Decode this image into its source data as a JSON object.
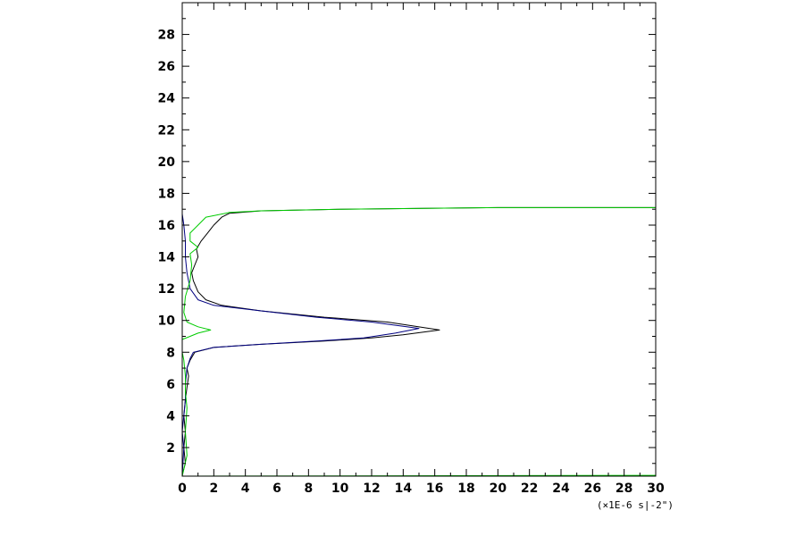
{
  "chart_data": {
    "type": "line",
    "title": "",
    "xlabel": "",
    "ylabel": "",
    "x_unit_label": "(×1E-6 s|-2\")",
    "xlim": [
      0,
      30
    ],
    "ylim": [
      0.2,
      30
    ],
    "x_ticks": [
      0,
      2,
      4,
      6,
      8,
      10,
      12,
      14,
      16,
      18,
      20,
      22,
      24,
      26,
      28,
      30
    ],
    "y_ticks": [
      2,
      4,
      6,
      8,
      10,
      12,
      14,
      16,
      18,
      20,
      22,
      24,
      26,
      28
    ],
    "grid": false,
    "legend": "none",
    "series": [
      {
        "color": "#000000",
        "points": [
          [
            0.0,
            0.3
          ],
          [
            0.2,
            1.0
          ],
          [
            0.1,
            2.0
          ],
          [
            0.2,
            3.0
          ],
          [
            0.1,
            4.0
          ],
          [
            0.2,
            5.0
          ],
          [
            0.3,
            5.8
          ],
          [
            0.4,
            6.5
          ],
          [
            0.3,
            7.0
          ],
          [
            0.5,
            7.5
          ],
          [
            0.8,
            8.0
          ],
          [
            2.0,
            8.3
          ],
          [
            5.0,
            8.5
          ],
          [
            9.0,
            8.7
          ],
          [
            12.0,
            8.9
          ],
          [
            14.0,
            9.1
          ],
          [
            16.3,
            9.4
          ],
          [
            13.0,
            9.9
          ],
          [
            9.0,
            10.2
          ],
          [
            5.0,
            10.6
          ],
          [
            2.5,
            10.95
          ],
          [
            1.5,
            11.3
          ],
          [
            1.0,
            11.8
          ],
          [
            0.7,
            12.5
          ],
          [
            0.6,
            13.0
          ],
          [
            0.8,
            13.5
          ],
          [
            1.0,
            14.0
          ],
          [
            0.9,
            14.5
          ],
          [
            1.2,
            15.0
          ],
          [
            1.6,
            15.5
          ],
          [
            2.0,
            16.0
          ],
          [
            2.5,
            16.5
          ],
          [
            3.0,
            16.75
          ],
          [
            5.0,
            16.9
          ],
          [
            10.0,
            17.0
          ],
          [
            20.0,
            17.1
          ],
          [
            30.0,
            17.1
          ]
        ]
      },
      {
        "color": "#000080",
        "points": [
          [
            0.0,
            0.2
          ],
          [
            0.1,
            2.0
          ],
          [
            0.0,
            3.0
          ],
          [
            0.1,
            4.0
          ],
          [
            0.2,
            5.0
          ],
          [
            0.2,
            6.0
          ],
          [
            0.3,
            7.0
          ],
          [
            0.5,
            7.6
          ],
          [
            0.7,
            8.0
          ],
          [
            2.0,
            8.3
          ],
          [
            5.0,
            8.5
          ],
          [
            8.5,
            8.7
          ],
          [
            11.5,
            8.9
          ],
          [
            13.5,
            9.2
          ],
          [
            15.0,
            9.5
          ],
          [
            12.0,
            9.9
          ],
          [
            8.5,
            10.2
          ],
          [
            5.0,
            10.6
          ],
          [
            2.0,
            10.95
          ],
          [
            1.0,
            11.3
          ],
          [
            0.5,
            12.0
          ],
          [
            0.3,
            13.0
          ],
          [
            0.2,
            14.0
          ],
          [
            0.2,
            15.0
          ],
          [
            0.1,
            16.0
          ],
          [
            0.0,
            16.7
          ]
        ]
      },
      {
        "color": "#00cc00",
        "points": [
          [
            0.0,
            0.2
          ],
          [
            0.3,
            1.5
          ],
          [
            0.2,
            3.0
          ],
          [
            0.3,
            4.5
          ],
          [
            0.2,
            5.5
          ],
          [
            0.2,
            6.5
          ],
          [
            0.1,
            7.5
          ],
          [
            0.0,
            8.0
          ],
          [
            0.0,
            8.8
          ],
          [
            0.5,
            9.0
          ],
          [
            1.0,
            9.2
          ],
          [
            1.8,
            9.4
          ],
          [
            1.0,
            9.6
          ],
          [
            0.3,
            9.9
          ],
          [
            0.1,
            10.5
          ],
          [
            0.2,
            11.5
          ],
          [
            0.5,
            12.5
          ],
          [
            0.6,
            13.5
          ],
          [
            0.5,
            14.2
          ],
          [
            1.0,
            14.6
          ],
          [
            0.5,
            15.0
          ],
          [
            0.5,
            15.5
          ],
          [
            1.0,
            16.0
          ],
          [
            1.5,
            16.5
          ],
          [
            3.0,
            16.8
          ],
          [
            5.0,
            16.9
          ],
          [
            10.0,
            17.0
          ],
          [
            20.0,
            17.1
          ],
          [
            30.0,
            17.1
          ]
        ]
      },
      {
        "color": "#00cc00",
        "points": [
          [
            0.0,
            0.2
          ],
          [
            30.0,
            0.25
          ]
        ]
      }
    ]
  }
}
